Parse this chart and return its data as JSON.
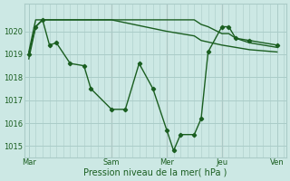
{
  "xlabel": "Pression niveau de la mer( hPa )",
  "bg_color": "#cce8e4",
  "grid_color": "#aaccc8",
  "line_color": "#1a5e20",
  "ylim": [
    1014.5,
    1021.2
  ],
  "yticks": [
    1015,
    1016,
    1017,
    1018,
    1019,
    1020
  ],
  "xtick_labels": [
    "Mar",
    "Sam",
    "Mer",
    "Jeu",
    "Ven"
  ],
  "xtick_positions": [
    0,
    36,
    60,
    84,
    108
  ],
  "vline_color": "#b07070",
  "series1_x": [
    0,
    3,
    6,
    9,
    12,
    18,
    24,
    27,
    36,
    42,
    48,
    54,
    60,
    63,
    66,
    72,
    75,
    78,
    84,
    87,
    90,
    96,
    108
  ],
  "series1_y": [
    1019.0,
    1020.2,
    1020.5,
    1019.4,
    1019.5,
    1018.6,
    1018.5,
    1017.5,
    1016.6,
    1016.6,
    1018.6,
    1017.5,
    1015.7,
    1014.8,
    1015.5,
    1015.5,
    1016.2,
    1019.1,
    1020.2,
    1020.2,
    1019.7,
    1019.6,
    1019.4
  ],
  "series2_x": [
    0,
    3,
    36,
    60,
    72,
    75,
    78,
    84,
    87,
    90,
    96,
    108
  ],
  "series2_y": [
    1019.1,
    1020.5,
    1020.5,
    1020.5,
    1020.5,
    1020.3,
    1020.2,
    1019.9,
    1019.9,
    1019.7,
    1019.5,
    1019.3
  ],
  "series3_x": [
    0,
    3,
    6,
    12,
    24,
    36,
    60,
    72,
    75,
    84,
    96,
    108
  ],
  "series3_y": [
    1018.8,
    1020.2,
    1020.5,
    1020.5,
    1020.5,
    1020.5,
    1020.0,
    1019.8,
    1019.6,
    1019.4,
    1019.2,
    1019.1
  ]
}
